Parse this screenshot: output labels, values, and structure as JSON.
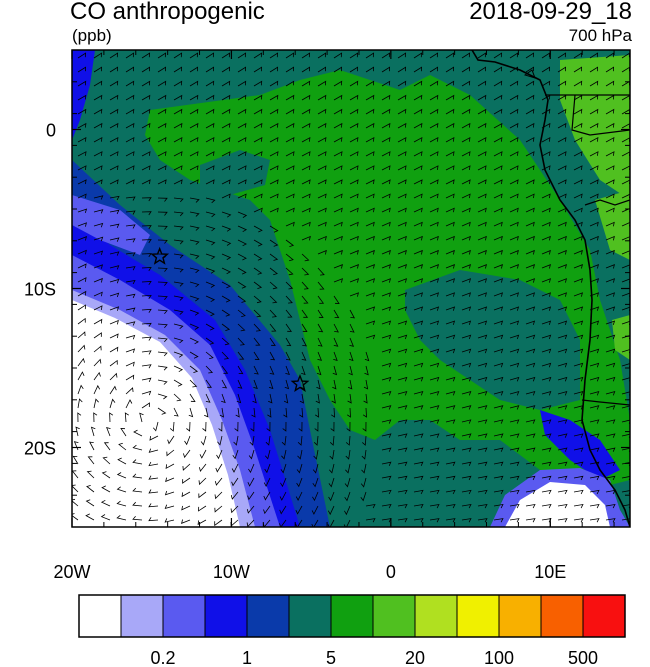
{
  "header": {
    "title": "CO anthropogenic",
    "units": "(ppb)",
    "datetime": "2018-09-29_18",
    "level": "700 hPa"
  },
  "map": {
    "lon_range": [
      -20,
      15
    ],
    "lat_range": [
      -25,
      5
    ],
    "x_ticks": [
      {
        "value": -20,
        "label": "20W"
      },
      {
        "value": -10,
        "label": "10W"
      },
      {
        "value": 0,
        "label": "0"
      },
      {
        "value": 10,
        "label": "10E"
      }
    ],
    "y_ticks": [
      {
        "value": 0,
        "label": "0"
      },
      {
        "value": -10,
        "label": "10S"
      },
      {
        "value": -20,
        "label": "20S"
      }
    ],
    "markers": [
      {
        "name": "star-marker-1",
        "lon": -14.5,
        "lat": -8
      },
      {
        "name": "star-marker-2",
        "lon": -5.7,
        "lat": -16
      }
    ]
  },
  "colorbar": {
    "colors": [
      "#ffffff",
      "#a8a8f8",
      "#5a5af0",
      "#1010e8",
      "#0a3aaa",
      "#0a7060",
      "#10a010",
      "#50c020",
      "#b0e020",
      "#f0f000",
      "#f8b000",
      "#f86000",
      "#f81010"
    ],
    "labels": [
      {
        "index": 2,
        "text": "0.2"
      },
      {
        "index": 4,
        "text": "1"
      },
      {
        "index": 6,
        "text": "5"
      },
      {
        "index": 8,
        "text": "20"
      },
      {
        "index": 10,
        "text": "100"
      },
      {
        "index": 12,
        "text": "500"
      }
    ]
  }
}
